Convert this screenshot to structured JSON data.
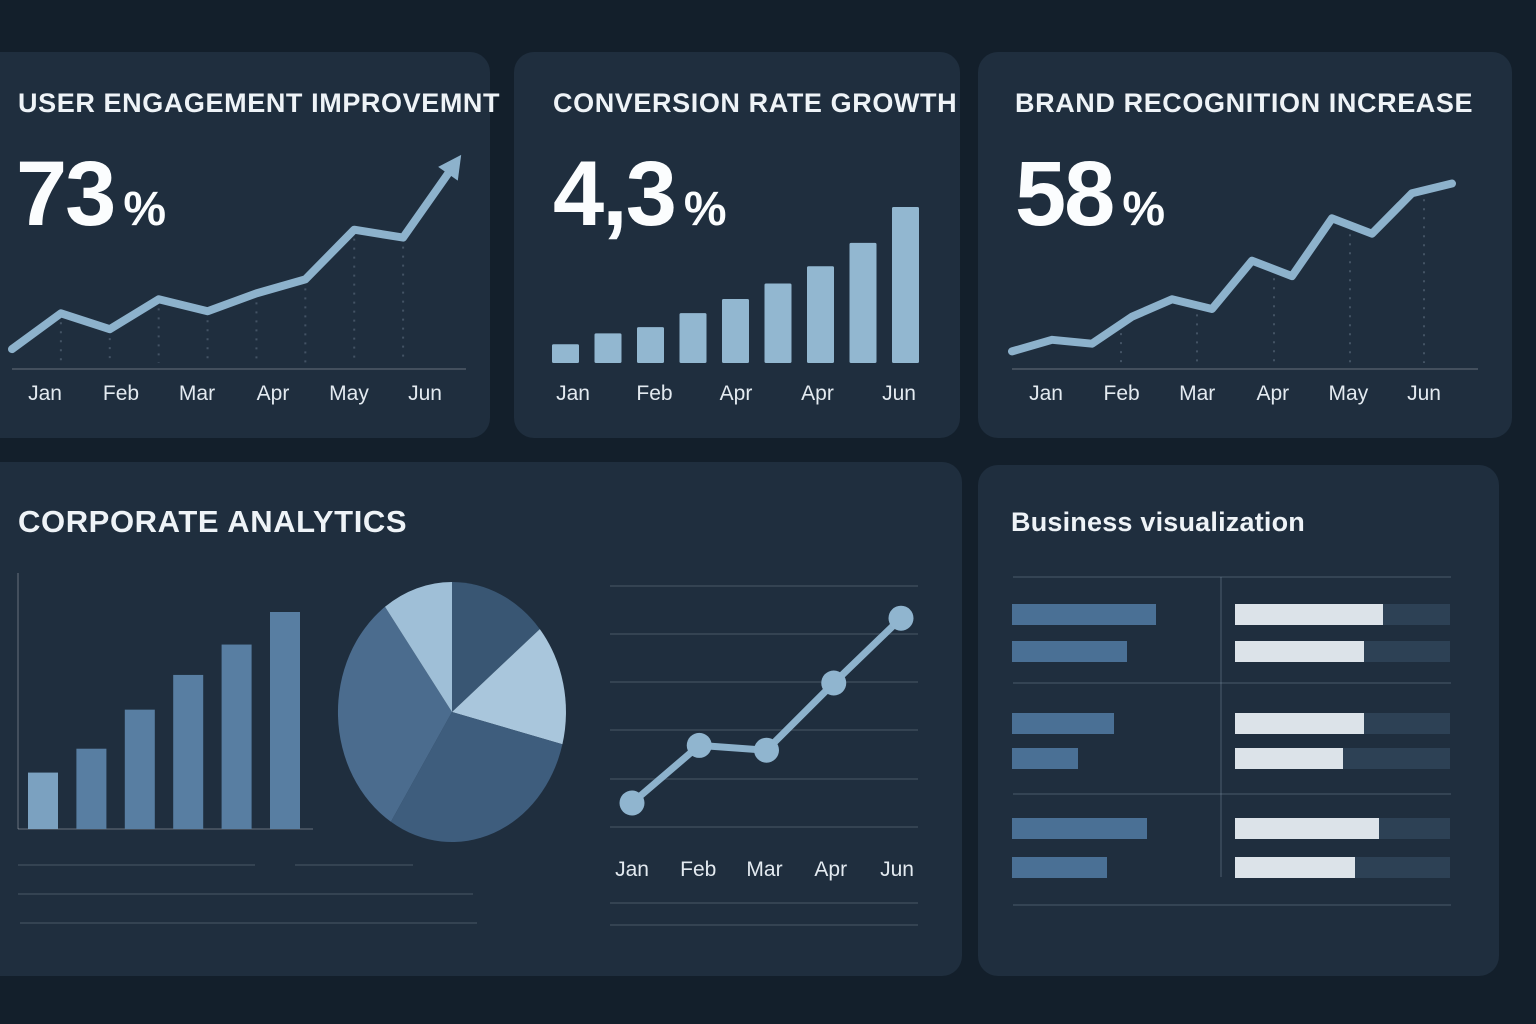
{
  "page": {
    "background": "#131f2b",
    "card_background": "#1f2e3e"
  },
  "colors": {
    "line": "#8db2cc",
    "bar_light": "#92b7d0",
    "bar_first": "#7ba1c0",
    "bar_dark": "#587ea2",
    "pie": [
      "#395673",
      "#a9c6dc",
      "#3e5d7d",
      "#4b6c8e",
      "#9fbfd7"
    ],
    "dot": "#90b5cf",
    "blue_bar": "#4a7095",
    "progress_track": "#2d4155",
    "progress_fill": "#dce3e9",
    "axis_label": "#e3eaf0",
    "title": "#eef3f7",
    "gridline_dash": "rgba(160,180,200,0.28)",
    "gridline": "rgba(190,205,220,0.13)",
    "axis_line": "rgba(255,255,255,0.16)"
  },
  "cards": {
    "user_engagement": {
      "title": "USER ENGAGEMENT IMPROVEMNT",
      "metric": "73",
      "metric_suffix": "%",
      "months": [
        "Jan",
        "Feb",
        "Mar",
        "Apr",
        "May",
        "Jun"
      ]
    },
    "conversion_rate": {
      "title": "CONVERSION RATE GROWTH",
      "metric": "4,3",
      "metric_suffix": "%",
      "months": [
        "Jan",
        "Feb",
        "Apr",
        "Apr",
        "Jun"
      ]
    },
    "brand_recognition": {
      "title": "BRAND RECOGNITION INCREASE",
      "metric": "58",
      "metric_suffix": "%",
      "months": [
        "Jan",
        "Feb",
        "Mar",
        "Apr",
        "May",
        "Jun"
      ]
    },
    "corporate_analytics": {
      "title": "CORPORATE ANALYTICS",
      "months": [
        "Jan",
        "Feb",
        "Mar",
        "Apr",
        "Jun"
      ]
    },
    "business_visualization": {
      "title": "Business visualization"
    }
  },
  "chart_data": [
    {
      "id": "user-engagement-trend",
      "type": "line",
      "title": "USER ENGAGEMENT IMPROVEMNT",
      "metric": "73%",
      "categories": [
        "Jan",
        "Feb",
        "Mar",
        "Apr",
        "May",
        "Jun"
      ],
      "values": [
        7,
        25,
        17,
        32,
        26,
        35,
        42,
        67,
        63,
        98
      ],
      "ylim": [
        0,
        100
      ],
      "grid": "dashed-vertical",
      "annotation": "arrow-end"
    },
    {
      "id": "conversion-rate-growth",
      "type": "bar",
      "title": "CONVERSION RATE GROWTH",
      "metric": "4,3%",
      "categories": [
        "Jan",
        "Feb",
        "Apr",
        "Apr",
        "Jun"
      ],
      "values": [
        12,
        19,
        23,
        32,
        41,
        51,
        62,
        77,
        100
      ],
      "ylim": [
        0,
        100
      ]
    },
    {
      "id": "brand-recognition-trend",
      "type": "line",
      "title": "BRAND RECOGNITION INCREASE",
      "metric": "58%",
      "categories": [
        "Jan",
        "Feb",
        "Mar",
        "Apr",
        "May",
        "Jun"
      ],
      "values": [
        6,
        12,
        10,
        24,
        33,
        28,
        53,
        45,
        75,
        67,
        88,
        93
      ],
      "ylim": [
        0,
        100
      ],
      "grid": "dashed-vertical"
    },
    {
      "id": "corporate-analytics",
      "type": "mixed",
      "title": "CORPORATE ANALYTICS",
      "bar": {
        "values": [
          26,
          37,
          55,
          71,
          85,
          100
        ],
        "ylim": [
          0,
          100
        ]
      },
      "pie": {
        "segments": [
          {
            "label": "slice-1",
            "value": 14
          },
          {
            "label": "slice-2",
            "value": 15
          },
          {
            "label": "slice-3",
            "value": 30
          },
          {
            "label": "slice-4",
            "value": 31
          },
          {
            "label": "slice-5",
            "value": 10
          }
        ]
      },
      "line": {
        "categories": [
          "Jan",
          "Feb",
          "Mar",
          "Apr",
          "Jun"
        ],
        "values": [
          10,
          34,
          32,
          60,
          87
        ],
        "ylim": [
          0,
          100
        ],
        "markers": true,
        "grid": "horizontal"
      }
    },
    {
      "id": "business-visualization",
      "type": "table",
      "title": "Business visualization",
      "rows": [
        {
          "group": 1,
          "left_bar_pct": 65,
          "progress_pct": 69
        },
        {
          "group": 1,
          "left_bar_pct": 52,
          "progress_pct": 60
        },
        {
          "group": 2,
          "left_bar_pct": 46,
          "progress_pct": 60
        },
        {
          "group": 2,
          "left_bar_pct": 30,
          "progress_pct": 50
        },
        {
          "group": 3,
          "left_bar_pct": 61,
          "progress_pct": 67
        },
        {
          "group": 3,
          "left_bar_pct": 43,
          "progress_pct": 56
        }
      ]
    }
  ]
}
